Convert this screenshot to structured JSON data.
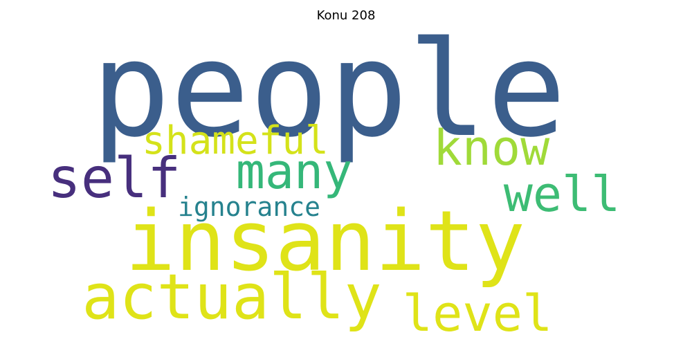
{
  "chart_data": {
    "type": "wordcloud",
    "title": "Konu 208",
    "words": [
      {
        "text": "people",
        "weight": 1.0,
        "color": "#3b5e8c"
      },
      {
        "text": "insanity",
        "weight": 0.75,
        "color": "#dfe318"
      },
      {
        "text": "actually",
        "weight": 0.55,
        "color": "#dfe318"
      },
      {
        "text": "self",
        "weight": 0.5,
        "color": "#472f7d"
      },
      {
        "text": "many",
        "weight": 0.42,
        "color": "#35b779"
      },
      {
        "text": "know",
        "weight": 0.42,
        "color": "#a0da39"
      },
      {
        "text": "well",
        "weight": 0.42,
        "color": "#3dbc74"
      },
      {
        "text": "level",
        "weight": 0.42,
        "color": "#dfe318"
      },
      {
        "text": "shameful",
        "weight": 0.3,
        "color": "#d4e21a"
      },
      {
        "text": "ignorance",
        "weight": 0.2,
        "color": "#26828e"
      }
    ]
  }
}
